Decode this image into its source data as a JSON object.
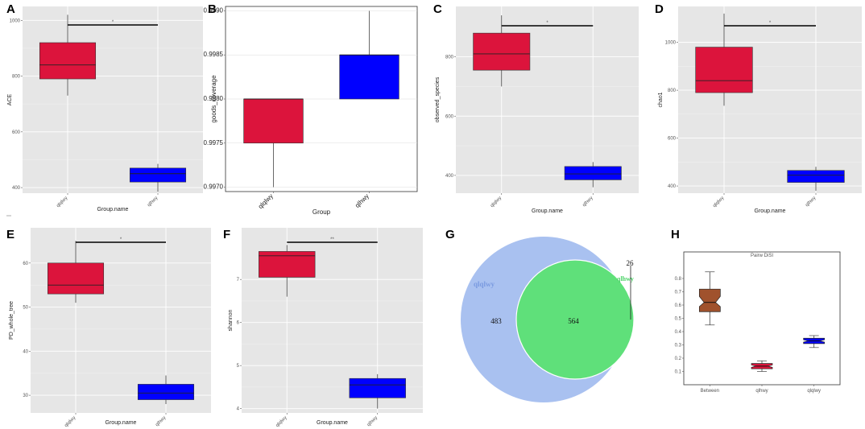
{
  "colors": {
    "red": "#DC143C",
    "blue": "#0000FF",
    "brown": "#A0522D",
    "venn_a": "#A9C1F0",
    "venn_b": "#5FE07A",
    "panel_bg": "#E6E6E6"
  },
  "chart_data": [
    {
      "id": "A",
      "label": "A",
      "type": "box",
      "ylabel": "ACE",
      "xlabel": "Group.name",
      "categories": [
        "qlqlwy",
        "qlhwy"
      ],
      "ylim": [
        380,
        1050
      ],
      "yticks": [
        400,
        600,
        800,
        1000
      ],
      "boxes": [
        {
          "min": 730,
          "q1": 790,
          "median": 840,
          "q3": 920,
          "max": 1020,
          "color": "red"
        },
        {
          "min": 385,
          "q1": 420,
          "median": 450,
          "q3": 470,
          "max": 485,
          "color": "blue"
        }
      ],
      "significance": "*"
    },
    {
      "id": "B",
      "label": "B",
      "type": "box",
      "ylabel": "goods_coverage",
      "xlabel": "Group",
      "categories": [
        "qlqlwy",
        "qlhwy"
      ],
      "ylim": [
        0.99695,
        0.99905
      ],
      "yticks": [
        0.997,
        0.9975,
        0.998,
        0.9985,
        0.999
      ],
      "ytick_labels": [
        "0.9970",
        "0.9975",
        "0.9980",
        "0.9985",
        "0.9990"
      ],
      "boxes": [
        {
          "min": 0.997,
          "q1": 0.9975,
          "median": 0.998,
          "q3": 0.998,
          "max": 0.998,
          "color": "red"
        },
        {
          "min": 0.998,
          "q1": 0.998,
          "median": 0.9985,
          "q3": 0.9985,
          "max": 0.999,
          "color": "blue"
        }
      ],
      "significance": ""
    },
    {
      "id": "C",
      "label": "C",
      "type": "box",
      "ylabel": "observed_species",
      "xlabel": "Group.name",
      "categories": [
        "qlqlwy",
        "qlhwy"
      ],
      "ylim": [
        340,
        970
      ],
      "yticks": [
        400,
        600,
        800
      ],
      "boxes": [
        {
          "min": 700,
          "q1": 755,
          "median": 810,
          "q3": 880,
          "max": 940,
          "color": "red"
        },
        {
          "min": 360,
          "q1": 385,
          "median": 405,
          "q3": 430,
          "max": 445,
          "color": "blue"
        }
      ],
      "significance": "*"
    },
    {
      "id": "D",
      "label": "D",
      "type": "box",
      "ylabel": "chao1",
      "xlabel": "Group.name",
      "categories": [
        "qlqlwy",
        "qlhwy"
      ],
      "ylim": [
        370,
        1150
      ],
      "yticks": [
        400,
        600,
        800,
        1000
      ],
      "boxes": [
        {
          "min": 735,
          "q1": 790,
          "median": 840,
          "q3": 980,
          "max": 1120,
          "color": "red"
        },
        {
          "min": 380,
          "q1": 415,
          "median": 445,
          "q3": 465,
          "max": 480,
          "color": "blue"
        }
      ],
      "significance": "*"
    },
    {
      "id": "E",
      "label": "E",
      "type": "box",
      "ylabel": "PD_whole_tree",
      "xlabel": "Group.name",
      "categories": [
        "qlqlwy",
        "qlhwy"
      ],
      "ylim": [
        26,
        68
      ],
      "yticks": [
        30,
        40,
        50,
        60
      ],
      "boxes": [
        {
          "min": 51,
          "q1": 53,
          "median": 55,
          "q3": 60,
          "max": 65,
          "color": "red"
        },
        {
          "min": 28,
          "q1": 29,
          "median": 30.5,
          "q3": 32.5,
          "max": 34.5,
          "color": "blue"
        }
      ],
      "significance": "*"
    },
    {
      "id": "F",
      "label": "F",
      "type": "box",
      "ylabel": "shannon",
      "xlabel": "Group.name",
      "categories": [
        "qlqlwy",
        "qlhwy"
      ],
      "ylim": [
        3.9,
        8.2
      ],
      "yticks": [
        4,
        5,
        6,
        7
      ],
      "boxes": [
        {
          "min": 6.6,
          "q1": 7.05,
          "median": 7.55,
          "q3": 7.65,
          "max": 7.8,
          "color": "red"
        },
        {
          "min": 4.0,
          "q1": 4.25,
          "median": 4.55,
          "q3": 4.7,
          "max": 4.8,
          "color": "blue"
        }
      ],
      "significance": "**"
    },
    {
      "id": "G",
      "label": "G",
      "type": "venn",
      "sets": [
        {
          "name": "qlqlwy",
          "color": "venn_a"
        },
        {
          "name": "qlhwy",
          "color": "venn_b"
        }
      ],
      "counts": {
        "only_a": "483",
        "shared": "564",
        "only_b": "26"
      }
    },
    {
      "id": "H",
      "label": "H",
      "type": "box",
      "notched": true,
      "title": "Pairw DiSI",
      "xlabel": "",
      "ylabel": "",
      "categories": [
        "Between",
        "qlhwy",
        "qlqlwy"
      ],
      "ylim": [
        0,
        1
      ],
      "yticks": [
        0.1,
        0.2,
        0.3,
        0.4,
        0.5,
        0.6,
        0.7,
        0.8
      ],
      "ytick_labels": [
        "0.1",
        "0.2",
        "0.3",
        "0.4",
        "0.5",
        "0.6",
        "0.7",
        "0.8"
      ],
      "boxes": [
        {
          "min": 0.45,
          "q1": 0.55,
          "median": 0.62,
          "q3": 0.72,
          "max": 0.85,
          "color": "brown"
        },
        {
          "min": 0.1,
          "q1": 0.12,
          "median": 0.14,
          "q3": 0.16,
          "max": 0.18,
          "color": "red"
        },
        {
          "min": 0.28,
          "q1": 0.31,
          "median": 0.33,
          "q3": 0.35,
          "max": 0.37,
          "color": "blue"
        }
      ],
      "significance": ""
    }
  ]
}
